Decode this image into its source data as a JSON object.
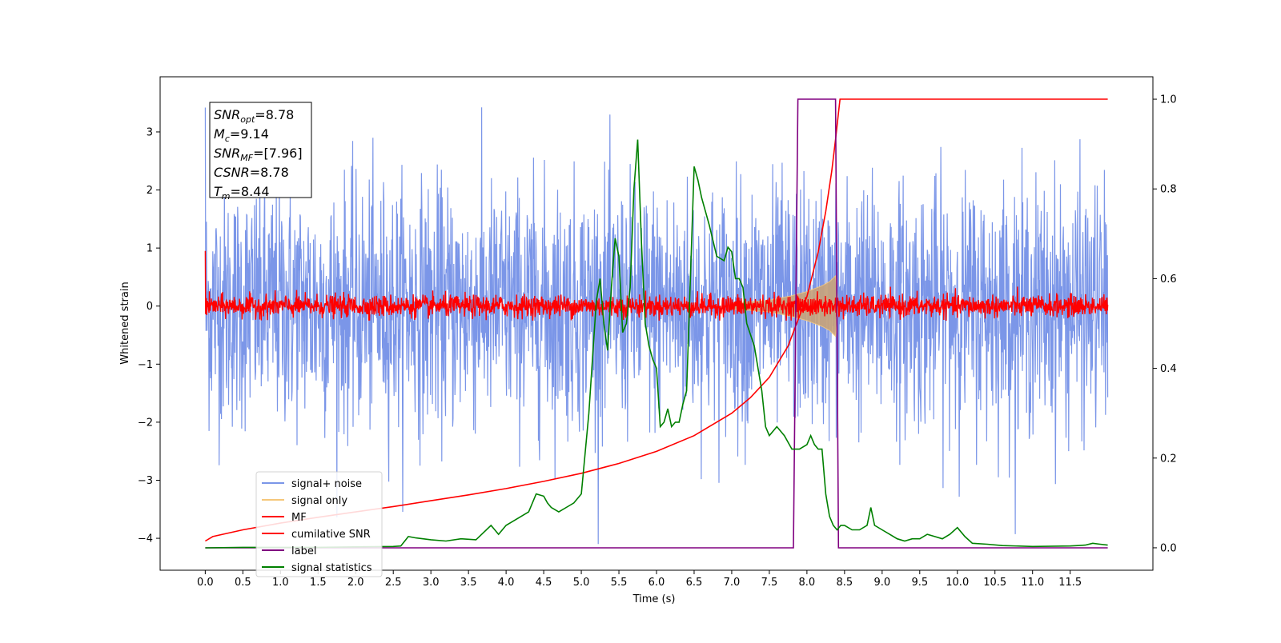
{
  "chart_data": {
    "type": "line",
    "xlabel": "Time (s)",
    "ylabel": "Whitened strain",
    "xlim": [
      -0.6,
      12.6
    ],
    "ylim_left": [
      -4.55,
      3.95
    ],
    "ylim_right": [
      -0.05,
      1.05
    ],
    "x_ticks": [
      "0.0",
      "0.5",
      "1.0",
      "1.5",
      "2.0",
      "2.5",
      "3.0",
      "3.5",
      "4.0",
      "4.5",
      "5.0",
      "5.5",
      "6.0",
      "6.5",
      "7.0",
      "7.5",
      "8.0",
      "8.5",
      "9.0",
      "9.5",
      "10.0",
      "10.5",
      "11.0",
      "11.5"
    ],
    "y_ticks_left": [
      "−4",
      "−3",
      "−2",
      "−1",
      "0",
      "1",
      "2",
      "3"
    ],
    "y_ticks_right": [
      "0.0",
      "0.2",
      "0.4",
      "0.6",
      "0.8",
      "1.0"
    ],
    "annotation": {
      "lines": [
        {
          "base": "SNR",
          "sub": "opt",
          "text": "=8.78"
        },
        {
          "base": "M",
          "sub": "c",
          "text": "=9.14"
        },
        {
          "base": "SNR",
          "sub": "MF",
          "text": "=[7.96]"
        },
        {
          "base": "CSNR",
          "sub": "",
          "text": "=8.78"
        },
        {
          "base": "T",
          "sub": "m",
          "text": "=8.44"
        }
      ]
    },
    "legend": {
      "placement": "lower-left",
      "entries": [
        {
          "label": "signal+ noise",
          "color": "#7b96e8"
        },
        {
          "label": "signal only",
          "color": "#f5c77a"
        },
        {
          "label": "MF",
          "color": "#ff0000"
        },
        {
          "label": "cumilative SNR",
          "color": "#ff0000"
        },
        {
          "label": "label",
          "color": "#800080"
        },
        {
          "label": "signal statistics",
          "color": "#008000"
        }
      ]
    },
    "series": [
      {
        "name": "signal+ noise",
        "axis": "left",
        "color": "#7b96e8",
        "kind": "noise",
        "x_range": [
          0,
          12
        ],
        "typical_abs": 1.9,
        "spike_max": 3.6,
        "spike_min": -4.1
      },
      {
        "name": "signal only",
        "axis": "left",
        "color": "#f5c77a",
        "kind": "chirp-envelope",
        "x": [
          7.0,
          7.5,
          7.8,
          8.0,
          8.2,
          8.3,
          8.38,
          8.42
        ],
        "amp": [
          0.05,
          0.1,
          0.18,
          0.25,
          0.35,
          0.42,
          0.52,
          0.0
        ]
      },
      {
        "name": "MF",
        "axis": "left",
        "color": "#ff0000",
        "kind": "noise",
        "x_range": [
          0,
          12
        ],
        "typical_abs": 0.17,
        "spike_max": 1.0,
        "spike_min": -0.25
      },
      {
        "name": "cumilative SNR",
        "axis": "right",
        "color": "#ff0000",
        "x": [
          0.0,
          0.1,
          0.5,
          1.0,
          1.5,
          2.0,
          2.5,
          3.0,
          3.5,
          4.0,
          4.5,
          5.0,
          5.5,
          6.0,
          6.5,
          7.0,
          7.25,
          7.5,
          7.75,
          8.0,
          8.15,
          8.25,
          8.33,
          8.38,
          8.42,
          8.44,
          12.0
        ],
        "y": [
          0.015,
          0.025,
          0.04,
          0.055,
          0.068,
          0.08,
          0.092,
          0.105,
          0.118,
          0.132,
          0.148,
          0.166,
          0.188,
          0.215,
          0.25,
          0.3,
          0.335,
          0.38,
          0.45,
          0.56,
          0.66,
          0.75,
          0.84,
          0.91,
          0.97,
          1.0,
          1.0
        ]
      },
      {
        "name": "label",
        "axis": "right",
        "color": "#800080",
        "x": [
          0.0,
          7.82,
          7.88,
          8.38,
          8.42,
          12.0
        ],
        "y": [
          0.0,
          0.0,
          1.0,
          1.0,
          0.0,
          0.0
        ]
      },
      {
        "name": "signal statistics",
        "axis": "right",
        "color": "#008000",
        "x": [
          0.0,
          0.5,
          1.0,
          1.5,
          2.0,
          2.5,
          2.6,
          2.7,
          2.8,
          3.0,
          3.2,
          3.4,
          3.6,
          3.8,
          3.9,
          4.0,
          4.1,
          4.2,
          4.3,
          4.4,
          4.5,
          4.55,
          4.6,
          4.7,
          4.8,
          4.9,
          5.0,
          5.1,
          5.2,
          5.25,
          5.3,
          5.35,
          5.4,
          5.45,
          5.5,
          5.55,
          5.6,
          5.65,
          5.7,
          5.75,
          5.8,
          5.85,
          5.9,
          5.95,
          6.0,
          6.05,
          6.1,
          6.15,
          6.2,
          6.25,
          6.3,
          6.35,
          6.4,
          6.45,
          6.5,
          6.55,
          6.6,
          6.7,
          6.8,
          6.9,
          6.95,
          7.0,
          7.05,
          7.1,
          7.15,
          7.2,
          7.3,
          7.4,
          7.45,
          7.5,
          7.55,
          7.6,
          7.7,
          7.8,
          7.9,
          8.0,
          8.05,
          8.1,
          8.15,
          8.2,
          8.25,
          8.3,
          8.35,
          8.4,
          8.45,
          8.5,
          8.6,
          8.7,
          8.8,
          8.85,
          8.9,
          9.0,
          9.1,
          9.2,
          9.3,
          9.4,
          9.5,
          9.6,
          9.7,
          9.8,
          9.9,
          10.0,
          10.1,
          10.2,
          10.4,
          10.6,
          11.0,
          11.5,
          11.6,
          11.7,
          11.8,
          11.9,
          12.0
        ],
        "y": [
          0.0,
          0.001,
          0.001,
          0.001,
          0.002,
          0.003,
          0.004,
          0.025,
          0.022,
          0.018,
          0.015,
          0.02,
          0.018,
          0.05,
          0.03,
          0.05,
          0.06,
          0.07,
          0.08,
          0.12,
          0.115,
          0.1,
          0.09,
          0.08,
          0.09,
          0.1,
          0.12,
          0.3,
          0.55,
          0.6,
          0.5,
          0.44,
          0.58,
          0.69,
          0.65,
          0.48,
          0.5,
          0.58,
          0.8,
          0.91,
          0.68,
          0.5,
          0.45,
          0.42,
          0.4,
          0.27,
          0.28,
          0.31,
          0.27,
          0.28,
          0.28,
          0.32,
          0.35,
          0.6,
          0.85,
          0.82,
          0.78,
          0.72,
          0.65,
          0.64,
          0.67,
          0.66,
          0.6,
          0.6,
          0.58,
          0.5,
          0.45,
          0.35,
          0.27,
          0.25,
          0.26,
          0.27,
          0.25,
          0.22,
          0.22,
          0.23,
          0.25,
          0.23,
          0.22,
          0.22,
          0.12,
          0.07,
          0.05,
          0.04,
          0.05,
          0.05,
          0.04,
          0.04,
          0.05,
          0.09,
          0.05,
          0.04,
          0.03,
          0.02,
          0.015,
          0.02,
          0.02,
          0.03,
          0.025,
          0.02,
          0.03,
          0.045,
          0.025,
          0.01,
          0.008,
          0.005,
          0.003,
          0.004,
          0.005,
          0.006,
          0.01,
          0.008,
          0.006
        ]
      }
    ]
  }
}
